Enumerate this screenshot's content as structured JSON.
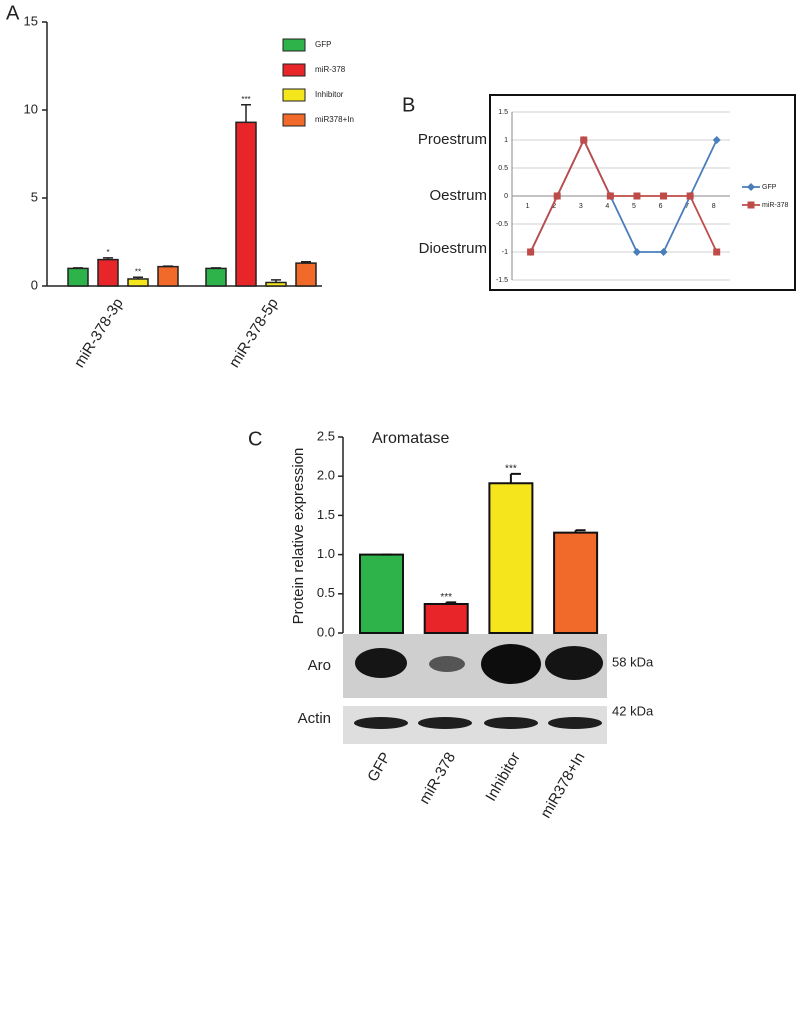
{
  "chart_data": [
    {
      "type": "bar",
      "panel": "A",
      "categories": [
        "miR-378-3p",
        "miR-378-5p"
      ],
      "series": [
        {
          "name": "GFP",
          "color": "#2db34a",
          "values": [
            1.0,
            1.0
          ],
          "errors": [
            0.03,
            0.03
          ],
          "significance": [
            null,
            null
          ]
        },
        {
          "name": "miR-378",
          "color": "#e8262a",
          "values": [
            1.5,
            9.3
          ],
          "errors": [
            0.1,
            1.0
          ],
          "significance": [
            "*",
            "***"
          ]
        },
        {
          "name": "Inhibitor",
          "color": "#f4e51d",
          "values": [
            0.4,
            0.2
          ],
          "errors": [
            0.1,
            0.15
          ],
          "significance": [
            "**",
            null
          ]
        },
        {
          "name": "miR378+In",
          "color": "#f26a2a",
          "values": [
            1.1,
            1.3
          ],
          "errors": [
            0.03,
            0.08
          ],
          "significance": [
            null,
            null
          ]
        }
      ],
      "ylim": [
        0,
        15
      ],
      "yticks": [
        0,
        5,
        10,
        15
      ],
      "legend": "upper right"
    },
    {
      "type": "line",
      "panel": "B",
      "x": [
        1,
        2,
        3,
        4,
        5,
        6,
        7,
        8
      ],
      "series": [
        {
          "name": "GFP",
          "color": "#4a7ebb",
          "marker": "diamond",
          "values": [
            -1,
            0,
            1,
            0,
            -1,
            -1,
            0,
            1
          ]
        },
        {
          "name": "miR-378",
          "color": "#be4b48",
          "marker": "square",
          "values": [
            -1,
            0,
            1,
            0,
            0,
            0,
            0,
            -1
          ]
        }
      ],
      "xlim": [
        0.3,
        8.5
      ],
      "ylim": [
        -1.5,
        1.5
      ],
      "yticks": [
        -1.5,
        -1,
        -0.5,
        0,
        0.5,
        1,
        1.5
      ],
      "grid": true,
      "state_labels": [
        {
          "value": 1,
          "label": "Proestrum"
        },
        {
          "value": 0,
          "label": "Oestrum"
        },
        {
          "value": -1,
          "label": "Dioestrum"
        }
      ],
      "legend": "right"
    },
    {
      "type": "bar",
      "panel": "C",
      "title": "Aromatase",
      "ylabel": "Protein relative expression",
      "categories": [
        "GFP",
        "miR-378",
        "Inhibitor",
        "miR378+In"
      ],
      "values": [
        1.0,
        0.37,
        1.91,
        1.28
      ],
      "errors": [
        0,
        0.02,
        0.12,
        0.03
      ],
      "significance": [
        null,
        "***",
        "***",
        null
      ],
      "colors": [
        "#2db34a",
        "#e8262a",
        "#f4e51d",
        "#f26a2a"
      ],
      "ylim": [
        0,
        2.5
      ],
      "yticks": [
        {
          "value": 0,
          "label": "0.0"
        },
        {
          "value": 0.5,
          "label": "0.5"
        },
        {
          "value": 1,
          "label": "1.0"
        },
        {
          "value": 1.5,
          "label": "1.5"
        },
        {
          "value": 2,
          "label": "2.0"
        },
        {
          "value": 2.5,
          "label": "2.5"
        }
      ],
      "blot": {
        "rows": [
          {
            "label": "Aro",
            "size": "58 kDa"
          },
          {
            "label": "Actin",
            "size": "42 kDa"
          }
        ]
      }
    }
  ]
}
